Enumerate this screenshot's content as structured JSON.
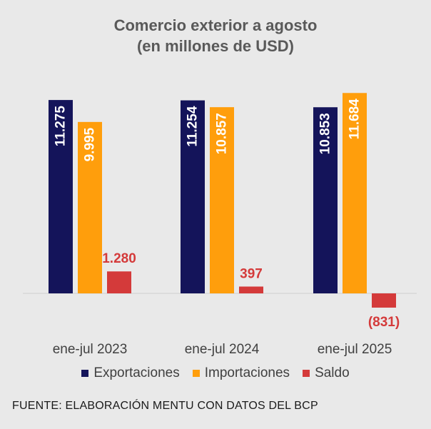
{
  "chart_data": {
    "type": "bar",
    "title": "Comercio exterior a agosto",
    "subtitle": "(en millones de USD)",
    "categories": [
      "ene-jul 2023",
      "ene-jul 2024",
      "ene-jul 2025"
    ],
    "series": [
      {
        "name": "Exportaciones",
        "color": "#14145a",
        "values": [
          11275,
          11254,
          10853
        ],
        "labels": [
          "11.275",
          "11.254",
          "10.853"
        ]
      },
      {
        "name": "Importaciones",
        "color": "#ff9e0c",
        "values": [
          9995,
          10857,
          11684
        ],
        "labels": [
          "9.995",
          "10.857",
          "11.684"
        ]
      },
      {
        "name": "Saldo",
        "color": "#d43a3a",
        "values": [
          1280,
          397,
          -831
        ],
        "labels": [
          "1.280",
          "397",
          "(831)"
        ]
      }
    ],
    "ylim": [
      -1100,
      12200
    ],
    "grid": false,
    "legend": "bottom"
  },
  "source": "FUENTE: ELABORACIÓN MENTU CON DATOS DEL BCP"
}
